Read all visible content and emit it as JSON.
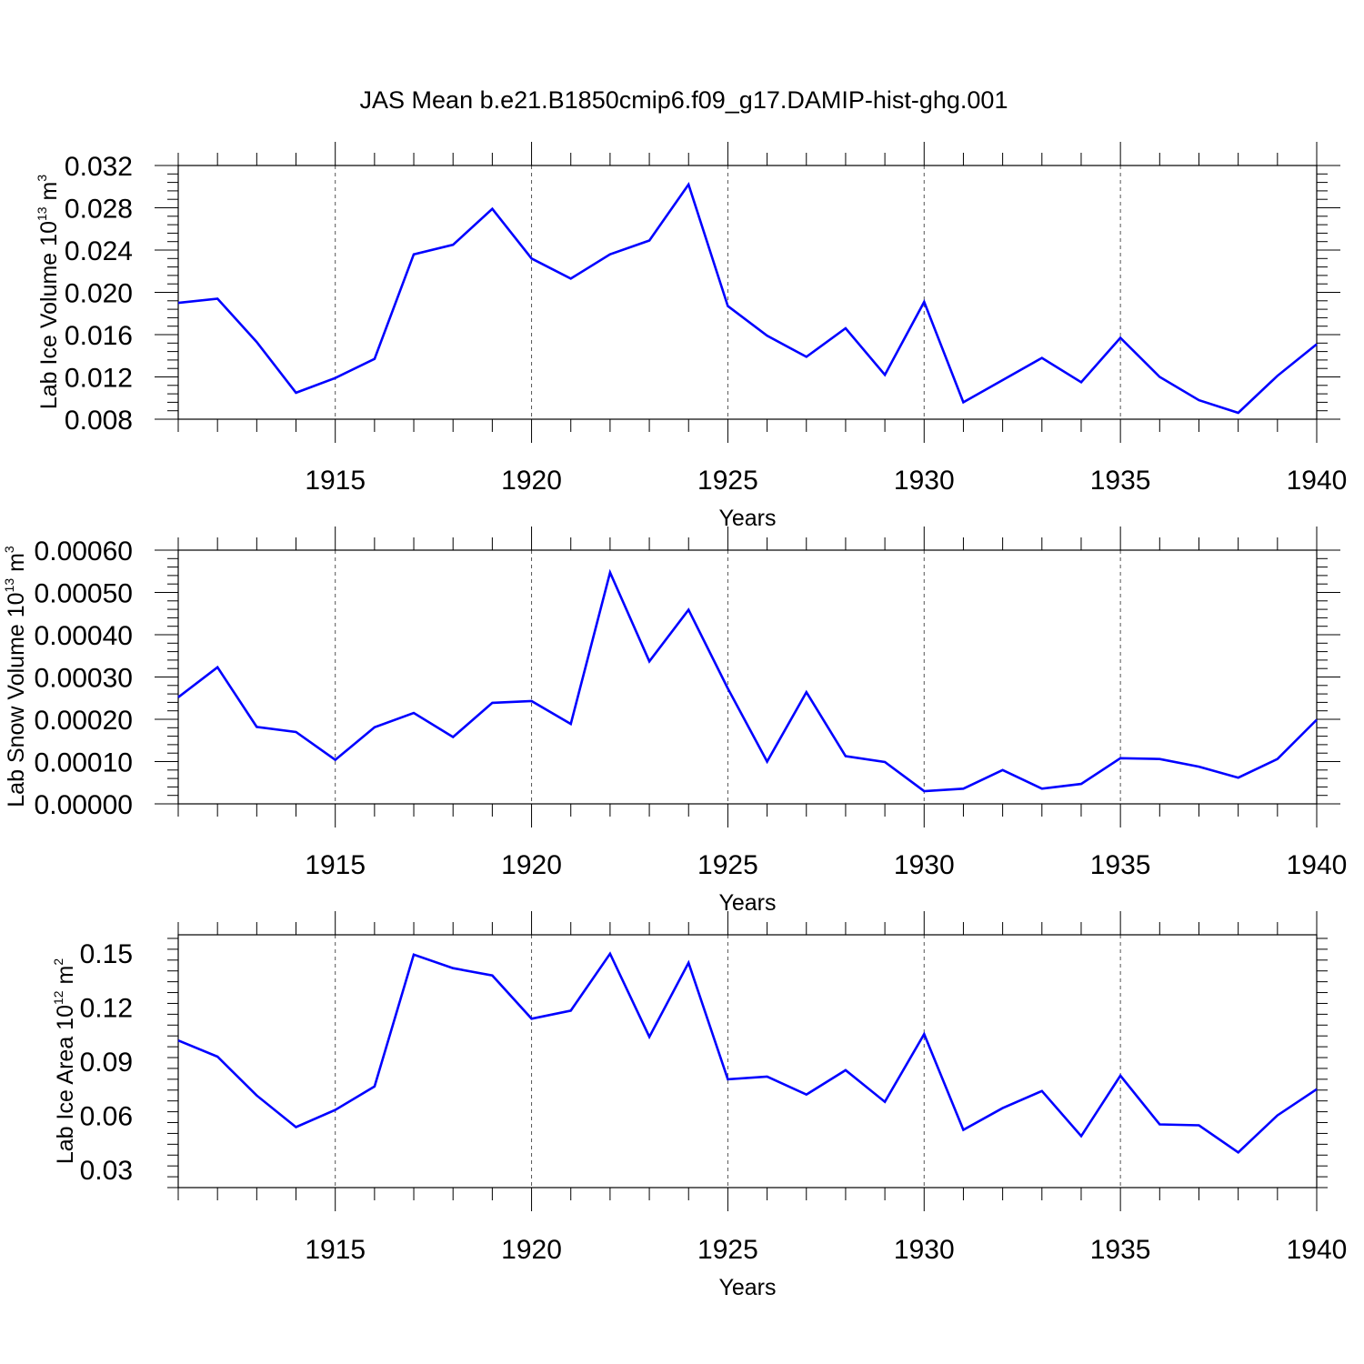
{
  "title": "JAS Mean b.e21.B1850cmip6.f09_g17.DAMIP-hist-ghg.001",
  "chart_data": [
    {
      "type": "line",
      "ylabel": {
        "prefix": "Lab Ice Volume 10",
        "exp": "13",
        "unit": " m",
        "unit_exp": "3"
      },
      "xlabel": "Years",
      "xlim": [
        1911,
        1940
      ],
      "ylim": [
        0.008,
        0.032
      ],
      "yticks": [
        0.008,
        0.012,
        0.016,
        0.02,
        0.024,
        0.028,
        0.032
      ],
      "ytick_labels": [
        "0.008",
        "0.012",
        "0.016",
        "0.020",
        "0.024",
        "0.028",
        "0.032"
      ],
      "xticks": [
        1915,
        1920,
        1925,
        1930,
        1935,
        1940
      ],
      "xtick_labels": [
        "1915",
        "1920",
        "1925",
        "1930",
        "1935",
        "1940"
      ],
      "line_color": "#0000ff",
      "x": [
        1911,
        1912,
        1913,
        1914,
        1915,
        1916,
        1917,
        1918,
        1919,
        1920,
        1921,
        1922,
        1923,
        1924,
        1925,
        1926,
        1927,
        1928,
        1929,
        1930,
        1931,
        1932,
        1933,
        1934,
        1935,
        1936,
        1937,
        1938,
        1939,
        1940
      ],
      "values": [
        0.019,
        0.0194,
        0.0153,
        0.0105,
        0.0119,
        0.0137,
        0.0236,
        0.0245,
        0.0279,
        0.0232,
        0.0213,
        0.0236,
        0.0249,
        0.0302,
        0.0187,
        0.0159,
        0.0139,
        0.0166,
        0.0122,
        0.0191,
        0.0096,
        0.0117,
        0.0138,
        0.0115,
        0.0157,
        0.012,
        0.0098,
        0.0086,
        0.0121,
        0.0151
      ]
    },
    {
      "type": "line",
      "ylabel": {
        "prefix": "Lab Snow Volume 10",
        "exp": "13",
        "unit": " m",
        "unit_exp": "3"
      },
      "xlabel": "Years",
      "xlim": [
        1911,
        1940
      ],
      "ylim": [
        0.0,
        0.0006
      ],
      "yticks": [
        0.0,
        0.0001,
        0.0002,
        0.0003,
        0.0004,
        0.0005,
        0.0006
      ],
      "ytick_labels": [
        "0.00000",
        "0.00010",
        "0.00020",
        "0.00030",
        "0.00040",
        "0.00050",
        "0.00060"
      ],
      "xticks": [
        1915,
        1920,
        1925,
        1930,
        1935,
        1940
      ],
      "xtick_labels": [
        "1915",
        "1920",
        "1925",
        "1930",
        "1935",
        "1940"
      ],
      "line_color": "#0000ff",
      "x": [
        1911,
        1912,
        1913,
        1914,
        1915,
        1916,
        1917,
        1918,
        1919,
        1920,
        1921,
        1922,
        1923,
        1924,
        1925,
        1926,
        1927,
        1928,
        1929,
        1930,
        1931,
        1932,
        1933,
        1934,
        1935,
        1936,
        1937,
        1938,
        1939,
        1940
      ],
      "values": [
        0.000252,
        0.000323,
        0.000182,
        0.00017,
        0.000104,
        0.000181,
        0.000215,
        0.000158,
        0.000239,
        0.000243,
        0.000189,
        0.000547,
        0.000337,
        0.000459,
        0.000273,
        0.0001,
        0.000264,
        0.000113,
        9.9e-05,
        3e-05,
        3.6e-05,
        8e-05,
        3.6e-05,
        4.7e-05,
        0.000108,
        0.000106,
        8.8e-05,
        6.2e-05,
        0.000106,
        0.000199
      ]
    },
    {
      "type": "line",
      "ylabel": {
        "prefix": "Lab Ice Area 10",
        "exp": "12",
        "unit": " m",
        "unit_exp": "2"
      },
      "xlabel": "Years",
      "xlim": [
        1911,
        1940
      ],
      "ylim": [
        0.02,
        0.16
      ],
      "yticks": [
        0.03,
        0.06,
        0.09,
        0.12,
        0.15
      ],
      "ytick_labels": [
        "0.03",
        "0.06",
        "0.09",
        "0.12",
        "0.15"
      ],
      "xticks": [
        1915,
        1920,
        1925,
        1930,
        1935,
        1940
      ],
      "xtick_labels": [
        "1915",
        "1920",
        "1925",
        "1930",
        "1935",
        "1940"
      ],
      "line_color": "#0000ff",
      "x": [
        1911,
        1912,
        1913,
        1914,
        1915,
        1916,
        1917,
        1918,
        1919,
        1920,
        1921,
        1922,
        1923,
        1924,
        1925,
        1926,
        1927,
        1928,
        1929,
        1930,
        1931,
        1932,
        1933,
        1934,
        1935,
        1936,
        1937,
        1938,
        1939,
        1940
      ],
      "values": [
        0.1015,
        0.0925,
        0.071,
        0.0535,
        0.063,
        0.076,
        0.149,
        0.1415,
        0.1375,
        0.1135,
        0.118,
        0.1495,
        0.1035,
        0.1445,
        0.08,
        0.0815,
        0.0715,
        0.085,
        0.0675,
        0.105,
        0.052,
        0.064,
        0.0735,
        0.0485,
        0.082,
        0.055,
        0.0545,
        0.0395,
        0.06,
        0.0745
      ]
    }
  ]
}
